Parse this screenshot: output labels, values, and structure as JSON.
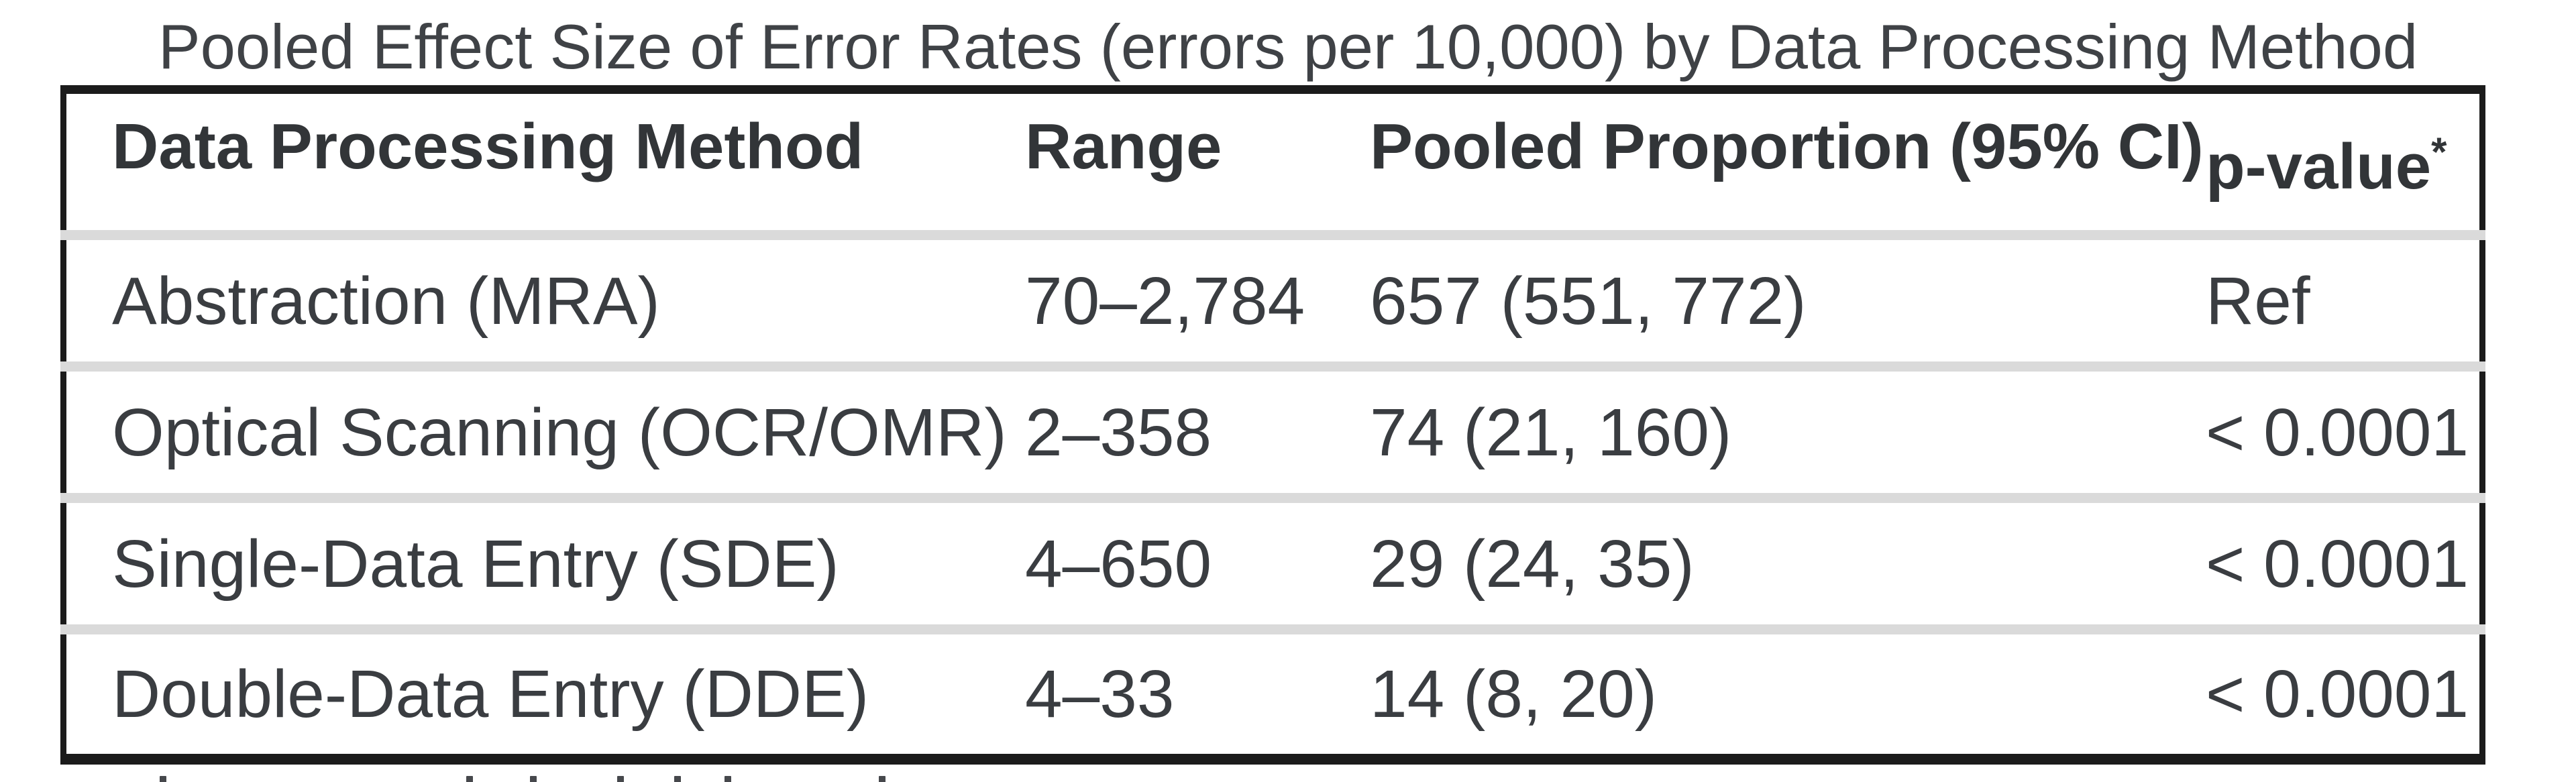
{
  "title": "Pooled Effect Size of Error Rates (errors per 10,000) by Data Processing Method",
  "table": {
    "headers": {
      "method": "Data Processing Method",
      "range": "Range",
      "pooled": "Pooled Proportion (95% CI)",
      "p_value": "p-value",
      "p_value_superscript": "*"
    },
    "rows": [
      {
        "method": "Abstraction (MRA)",
        "range": "70–2,784",
        "pooled": "657 (551, 772)",
        "p_value": "Ref"
      },
      {
        "method": "Optical Scanning (OCR/OMR)",
        "range": "2–358",
        "pooled": "74 (21, 160)",
        "p_value": "< 0.0001"
      },
      {
        "method": "Single-Data Entry (SDE)",
        "range": "4–650",
        "pooled": "29 (24, 35)",
        "p_value": "< 0.0001"
      },
      {
        "method": "Double-Data Entry (DDE)",
        "range": "4–33",
        "pooled": "14 (8, 20)",
        "p_value": "< 0.0001"
      }
    ]
  },
  "chart_data": {
    "type": "table",
    "title": "Pooled Effect Size of Error Rates (errors per 10,000) by Data Processing Method",
    "columns": [
      "Data Processing Method",
      "Range",
      "Pooled Proportion (95% CI)",
      "p-value*"
    ],
    "rows": [
      [
        "Abstraction (MRA)",
        "70–2,784",
        "657 (551, 772)",
        "Ref"
      ],
      [
        "Optical Scanning (OCR/OMR)",
        "2–358",
        "74 (21, 160)",
        "< 0.0001"
      ],
      [
        "Single-Data Entry (SDE)",
        "4–650",
        "29 (24, 35)",
        "< 0.0001"
      ],
      [
        "Double-Data Entry (DDE)",
        "4–33",
        "14 (8, 20)",
        "< 0.0001"
      ]
    ]
  },
  "colors": {
    "text": "#3a3d41",
    "header_text": "#323538",
    "title_text": "#3f4246",
    "border": "#1b1b1b",
    "row_separator": "#dadada",
    "background": "#ffffff"
  },
  "footnote_cutoff_marks_x": [
    238,
    695,
    790,
    920,
    1005,
    1080,
    1310
  ]
}
